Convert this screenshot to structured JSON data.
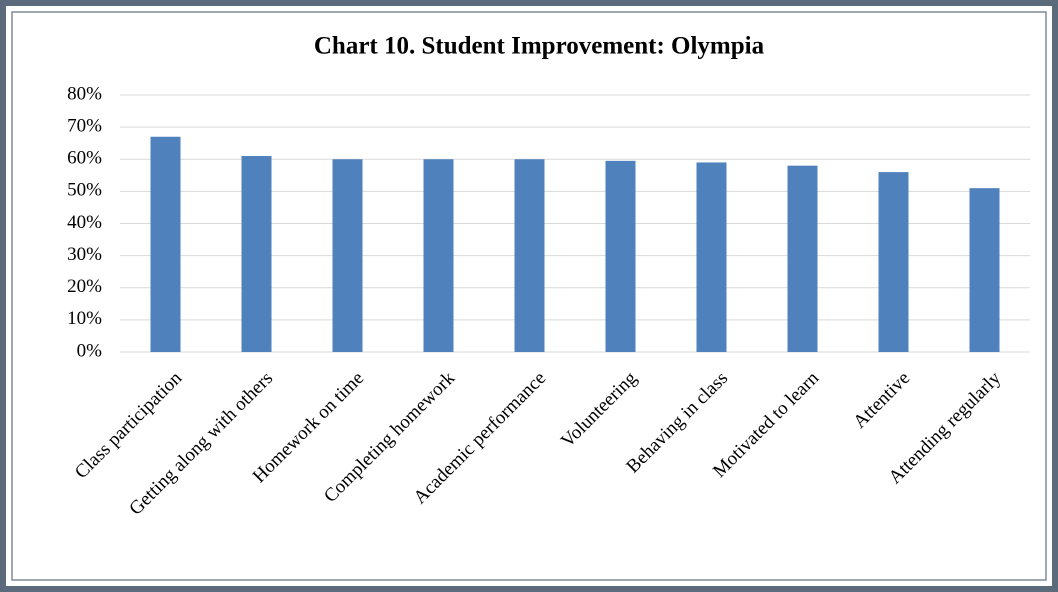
{
  "chart_data": {
    "type": "bar",
    "title": "Chart 10. Student Improvement: Olympia",
    "categories": [
      "Class participation",
      "Getting along with others",
      "Homework on time",
      "Completing homework",
      "Academic performance",
      "Volunteering",
      "Behaving in class",
      "Motivated to learn",
      "Attentive",
      "Attending regularly"
    ],
    "values": [
      67,
      61,
      60,
      60,
      60,
      59.5,
      59,
      58,
      56,
      51
    ],
    "color": "#4f81bd",
    "ylim": [
      0,
      80
    ],
    "yticks": [
      {
        "value": 0,
        "label": "0%"
      },
      {
        "value": 10,
        "label": "10%"
      },
      {
        "value": 20,
        "label": "20%"
      },
      {
        "value": 30,
        "label": "30%"
      },
      {
        "value": 40,
        "label": "40%"
      },
      {
        "value": 50,
        "label": "50%"
      },
      {
        "value": 60,
        "label": "60%"
      },
      {
        "value": 70,
        "label": "70%"
      },
      {
        "value": 80,
        "label": "80%"
      }
    ],
    "grid": true
  }
}
